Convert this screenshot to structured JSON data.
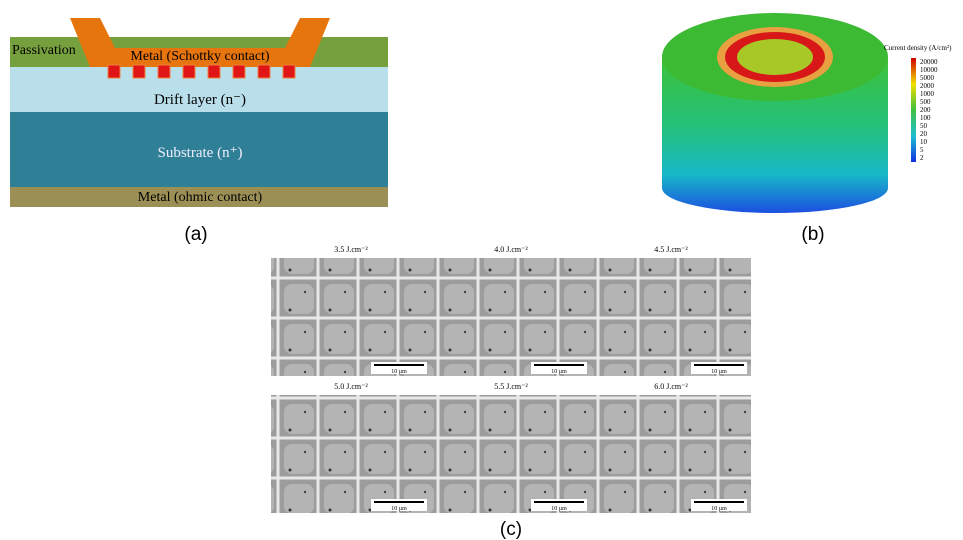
{
  "panel_a": {
    "label": "(a)",
    "passivation": "Passivation",
    "schottky": "Metal (Schottky contact)",
    "drift": "Drift layer (n⁻)",
    "substrate": "Substrate (n⁺)",
    "ohmic": "Metal (ohmic contact)"
  },
  "panel_b": {
    "label": "(b)",
    "colorbar_title": "Current density (A/cm²)",
    "colorbar_ticks": [
      "20000",
      "10000",
      "5000",
      "2000",
      "1000",
      "500",
      "200",
      "100",
      "50",
      "20",
      "10",
      "5",
      "2"
    ]
  },
  "panel_c": {
    "label": "(c)",
    "images": [
      {
        "fluence": "3.5 J.cm⁻²",
        "scale": "10 µm"
      },
      {
        "fluence": "4.0 J.cm⁻²",
        "scale": "10 µm"
      },
      {
        "fluence": "4.5 J.cm⁻²",
        "scale": "10 µm"
      },
      {
        "fluence": "5.0 J.cm⁻²",
        "scale": "10 µm"
      },
      {
        "fluence": "5.5 J.cm⁻²",
        "scale": "10 µm"
      },
      {
        "fluence": "6.0 J.cm⁻²",
        "scale": "10 µm"
      }
    ]
  }
}
